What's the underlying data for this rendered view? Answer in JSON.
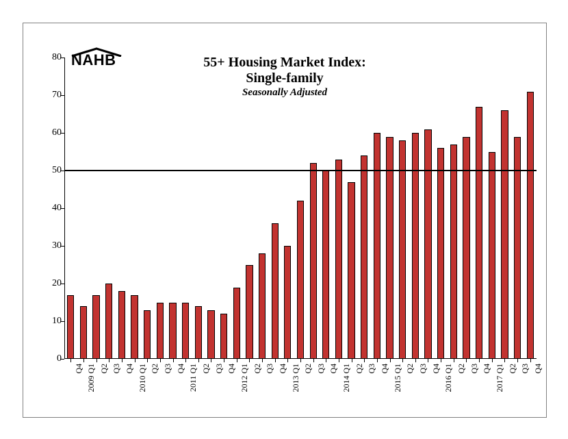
{
  "chart": {
    "type": "bar",
    "title_line1": "55+ Housing Market Index:",
    "title_line2": "Single-family",
    "subtitle": "Seasonally Adjusted",
    "logo_text": "NAHB",
    "background_color": "#ffffff",
    "border_color": "#808080",
    "axis_color": "#000000",
    "label_color": "#000000",
    "title_fontsize": 20,
    "subtitle_fontsize": 15,
    "y": {
      "min": 0,
      "max": 80,
      "step": 10,
      "label_fontsize": 14
    },
    "x_label_fontsize": 12,
    "reference_line": {
      "value": 50,
      "color": "#000000",
      "width": 2.5
    },
    "bar_fill": "#c23330",
    "bar_border": "#000000",
    "bar_width_ratio": 0.55,
    "categories": [
      "Q4",
      "2009 Q1",
      "Q2",
      "Q3",
      "Q4",
      "2010 Q1",
      "Q2",
      "Q3",
      "Q4",
      "2011 Q1",
      "Q2",
      "Q3",
      "Q4",
      "2012 Q1",
      "Q2",
      "Q3",
      "Q4",
      "2013 Q1",
      "Q2",
      "Q3",
      "Q4",
      "2014 Q1",
      "Q2",
      "Q3",
      "Q4",
      "2015 Q1",
      "Q2",
      "Q3",
      "Q4",
      "2016 Q1",
      "Q2",
      "Q3",
      "Q4",
      "2017 Q1",
      "Q2",
      "Q3",
      "Q4"
    ],
    "values": [
      17,
      14,
      17,
      20,
      18,
      17,
      13,
      15,
      15,
      15,
      14,
      13,
      12,
      19,
      25,
      28,
      36,
      30,
      42,
      52,
      50,
      53,
      47,
      54,
      60,
      59,
      58,
      60,
      61,
      56,
      57,
      59,
      67,
      55,
      66,
      59,
      71
    ]
  }
}
